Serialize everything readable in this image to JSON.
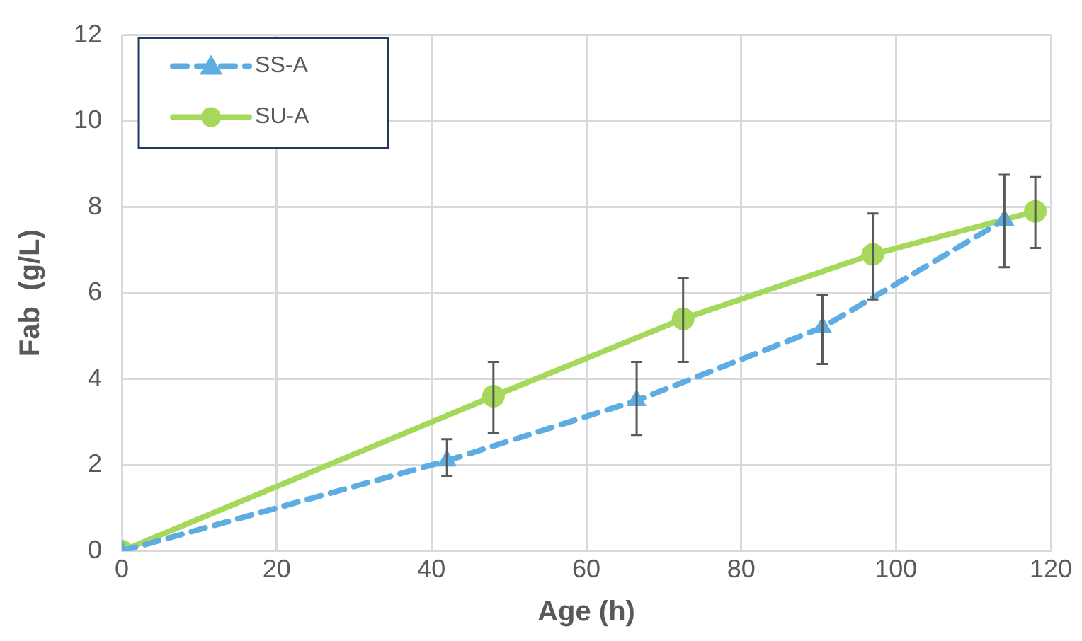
{
  "chart_data": {
    "type": "line",
    "xlabel": "Age (h)",
    "ylabel": "Fab  (g/L)",
    "xlim": [
      0,
      120
    ],
    "xticks": [
      0,
      20,
      40,
      60,
      80,
      100,
      120
    ],
    "ylim": [
      0,
      12
    ],
    "yticks": [
      0,
      2,
      4,
      6,
      8,
      10,
      12
    ],
    "grid": true,
    "legend": "top left",
    "series": [
      {
        "name": "SS-A",
        "color": "#5dade2",
        "marker": "triangle",
        "line_style": "dashed",
        "x": [
          0,
          42,
          66.5,
          90.5,
          114
        ],
        "values": [
          0,
          2.1,
          3.5,
          5.2,
          7.7
        ],
        "errors": [
          null,
          [
            1.75,
            2.6
          ],
          [
            2.7,
            4.4
          ],
          [
            4.35,
            5.95
          ],
          [
            6.6,
            8.75
          ]
        ]
      },
      {
        "name": "SU-A",
        "color": "#a6d95b",
        "marker": "circle",
        "line_style": "solid",
        "x": [
          0,
          48,
          72.5,
          97,
          118
        ],
        "values": [
          0,
          3.6,
          5.4,
          6.9,
          7.9
        ],
        "errors": [
          null,
          [
            2.75,
            4.4
          ],
          [
            4.4,
            6.35
          ],
          [
            5.85,
            7.85
          ],
          [
            7.05,
            8.7
          ]
        ]
      }
    ]
  }
}
